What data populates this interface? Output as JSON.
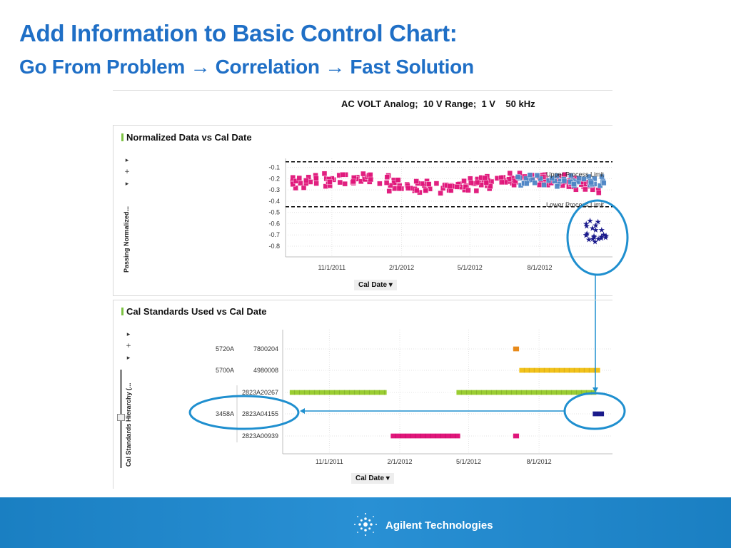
{
  "slide": {
    "title": "Add Information to Basic Control Chart:",
    "subtitle": "Go From Problem → Correlation → Fast Solution",
    "header": "AC VOLT Analog;  10 V Range;  1 V    50 kHz",
    "brand": "Agilent Technologies",
    "accent_color": "#1f6fc6",
    "footer_color": "#1a7fc2"
  },
  "toolbar_icons": [
    "play-icon",
    "plus-icon",
    "play-icon"
  ],
  "chart_data": [
    {
      "type": "scatter",
      "title": "Normalized Data vs Cal Date",
      "ylabel": "Passing Normalized...",
      "xlabel": "Cal Date",
      "x_ticks": [
        "11/1/2011",
        "2/1/2012",
        "5/1/2012",
        "8/1/2012"
      ],
      "y_ticks": [
        "-0.1",
        "-0.2",
        "-0.3",
        "-0.4",
        "-0.5",
        "-0.6",
        "-0.7",
        "-0.8"
      ],
      "ylim": [
        -0.87,
        -0.02
      ],
      "xlim": [
        "2011-09-01",
        "2012-11-05"
      ],
      "limits": [
        {
          "name": "Upper Process Limit",
          "value": -0.05
        },
        {
          "name": "Lower Process Limit",
          "value": -0.45
        }
      ],
      "series": [
        {
          "color": "#e0157a",
          "marker": "square",
          "x_range": [
            "2011-09-10",
            "2012-10-20"
          ],
          "y_center": -0.24,
          "y_spread": 0.05,
          "count": 200
        },
        {
          "color": "#4f86c6",
          "marker": "square",
          "x_range": [
            "2012-07-01",
            "2012-10-25"
          ],
          "y_center": -0.22,
          "y_spread": 0.04,
          "count": 45
        },
        {
          "color": "#1a1a8c",
          "marker": "star",
          "x_range": [
            "2012-10-01",
            "2012-10-30"
          ],
          "y_center": -0.68,
          "y_spread": 0.09,
          "count": 22
        }
      ]
    },
    {
      "type": "gantt",
      "title": "Cal Standards Used vs Cal Date",
      "ylabel": "Cal Standards Hierarchy (...",
      "xlabel": "Cal Date",
      "x_ticks": [
        "11/1/2011",
        "2/1/2012",
        "5/1/2012",
        "8/1/2012"
      ],
      "xlim": [
        "2011-09-01",
        "2012-11-05"
      ],
      "rows": [
        {
          "group": "5720A",
          "label": "7800204",
          "color": "#e88a1a",
          "spans": [
            [
              "2012-06-28",
              "2012-07-06"
            ]
          ]
        },
        {
          "group": "5700A",
          "label": "4980008",
          "color": "#f2c21b",
          "spans": [
            [
              "2012-07-06",
              "2012-10-20"
            ]
          ]
        },
        {
          "group": "",
          "label": "2823A20267",
          "color": "#9acd32",
          "spans": [
            [
              "2011-09-10",
              "2012-01-15"
            ],
            [
              "2012-04-15",
              "2012-10-15"
            ]
          ]
        },
        {
          "group": "3458A",
          "label": "2823A04155",
          "color": "#1a1a8c",
          "spans": [
            [
              "2012-10-10",
              "2012-10-25"
            ]
          ]
        },
        {
          "group": "",
          "label": "2823A00939",
          "color": "#e0157a",
          "spans": [
            [
              "2012-01-20",
              "2012-04-20"
            ],
            [
              "2012-06-28",
              "2012-07-06"
            ]
          ]
        }
      ]
    }
  ]
}
